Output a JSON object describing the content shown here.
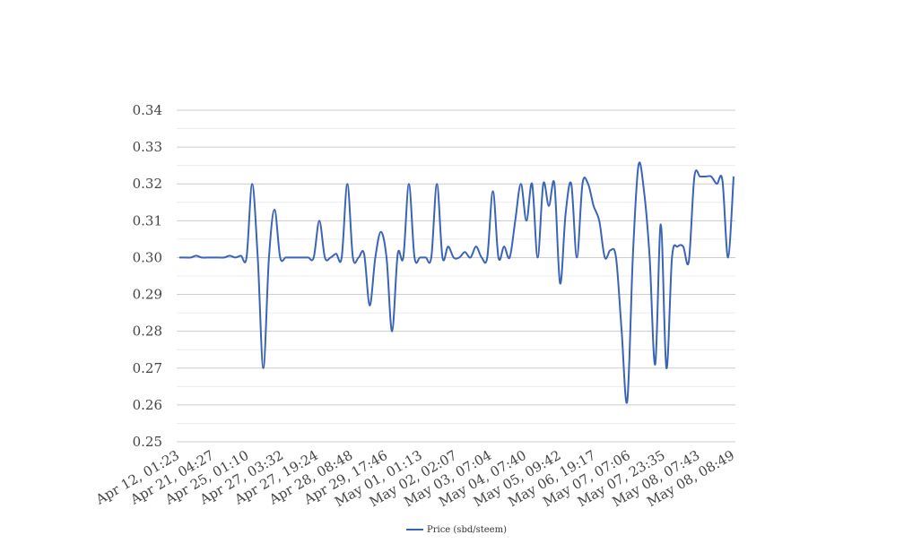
{
  "chart_data": {
    "type": "line",
    "title": "",
    "xlabel": "",
    "ylabel": "",
    "ylim": [
      0.25,
      0.34
    ],
    "yticks": [
      "0.25",
      "0.26",
      "0.27",
      "0.28",
      "0.29",
      "0.30",
      "0.31",
      "0.32",
      "0.33",
      "0.34"
    ],
    "xtick_labels": [
      "Apr 12, 01:23",
      "Apr 21, 04:27",
      "Apr 25, 01:10",
      "Apr 27, 03:32",
      "Apr 27, 19:24",
      "Apr 28, 08:48",
      "Apr 29, 17:46",
      "May 01, 01:13",
      "May 02, 02:07",
      "May 03, 07:04",
      "May 04, 07:40",
      "May 05, 09:42",
      "May 06, 19:17",
      "May 07, 07:06",
      "May 07, 23:35",
      "May 08, 07:43",
      "May 08, 08:49"
    ],
    "grid": true,
    "legend_position": "bottom",
    "series": [
      {
        "name": "Price (sbd/steem)",
        "color": "#3a64b8",
        "values": [
          0.3,
          0.3,
          0.3,
          0.3005,
          0.3,
          0.3,
          0.3,
          0.3,
          0.3,
          0.3005,
          0.3,
          0.3005,
          0.3,
          0.32,
          0.3,
          0.27,
          0.3,
          0.313,
          0.3,
          0.3,
          0.3,
          0.3,
          0.3,
          0.3,
          0.3,
          0.31,
          0.3,
          0.3,
          0.301,
          0.3,
          0.32,
          0.3,
          0.3,
          0.301,
          0.287,
          0.3,
          0.307,
          0.3,
          0.28,
          0.301,
          0.3,
          0.32,
          0.3,
          0.3,
          0.3,
          0.3,
          0.32,
          0.3,
          0.303,
          0.3,
          0.3,
          0.3015,
          0.3,
          0.303,
          0.3,
          0.3,
          0.318,
          0.3,
          0.303,
          0.3,
          0.31,
          0.32,
          0.31,
          0.32,
          0.3,
          0.32,
          0.314,
          0.32,
          0.293,
          0.312,
          0.32,
          0.3,
          0.32,
          0.32,
          0.314,
          0.31,
          0.3,
          0.302,
          0.3,
          0.28,
          0.261,
          0.3,
          0.325,
          0.318,
          0.3,
          0.271,
          0.309,
          0.27,
          0.3,
          0.303,
          0.303,
          0.299,
          0.322,
          0.322,
          0.322,
          0.322,
          0.32,
          0.321,
          0.3,
          0.322
        ]
      }
    ]
  }
}
